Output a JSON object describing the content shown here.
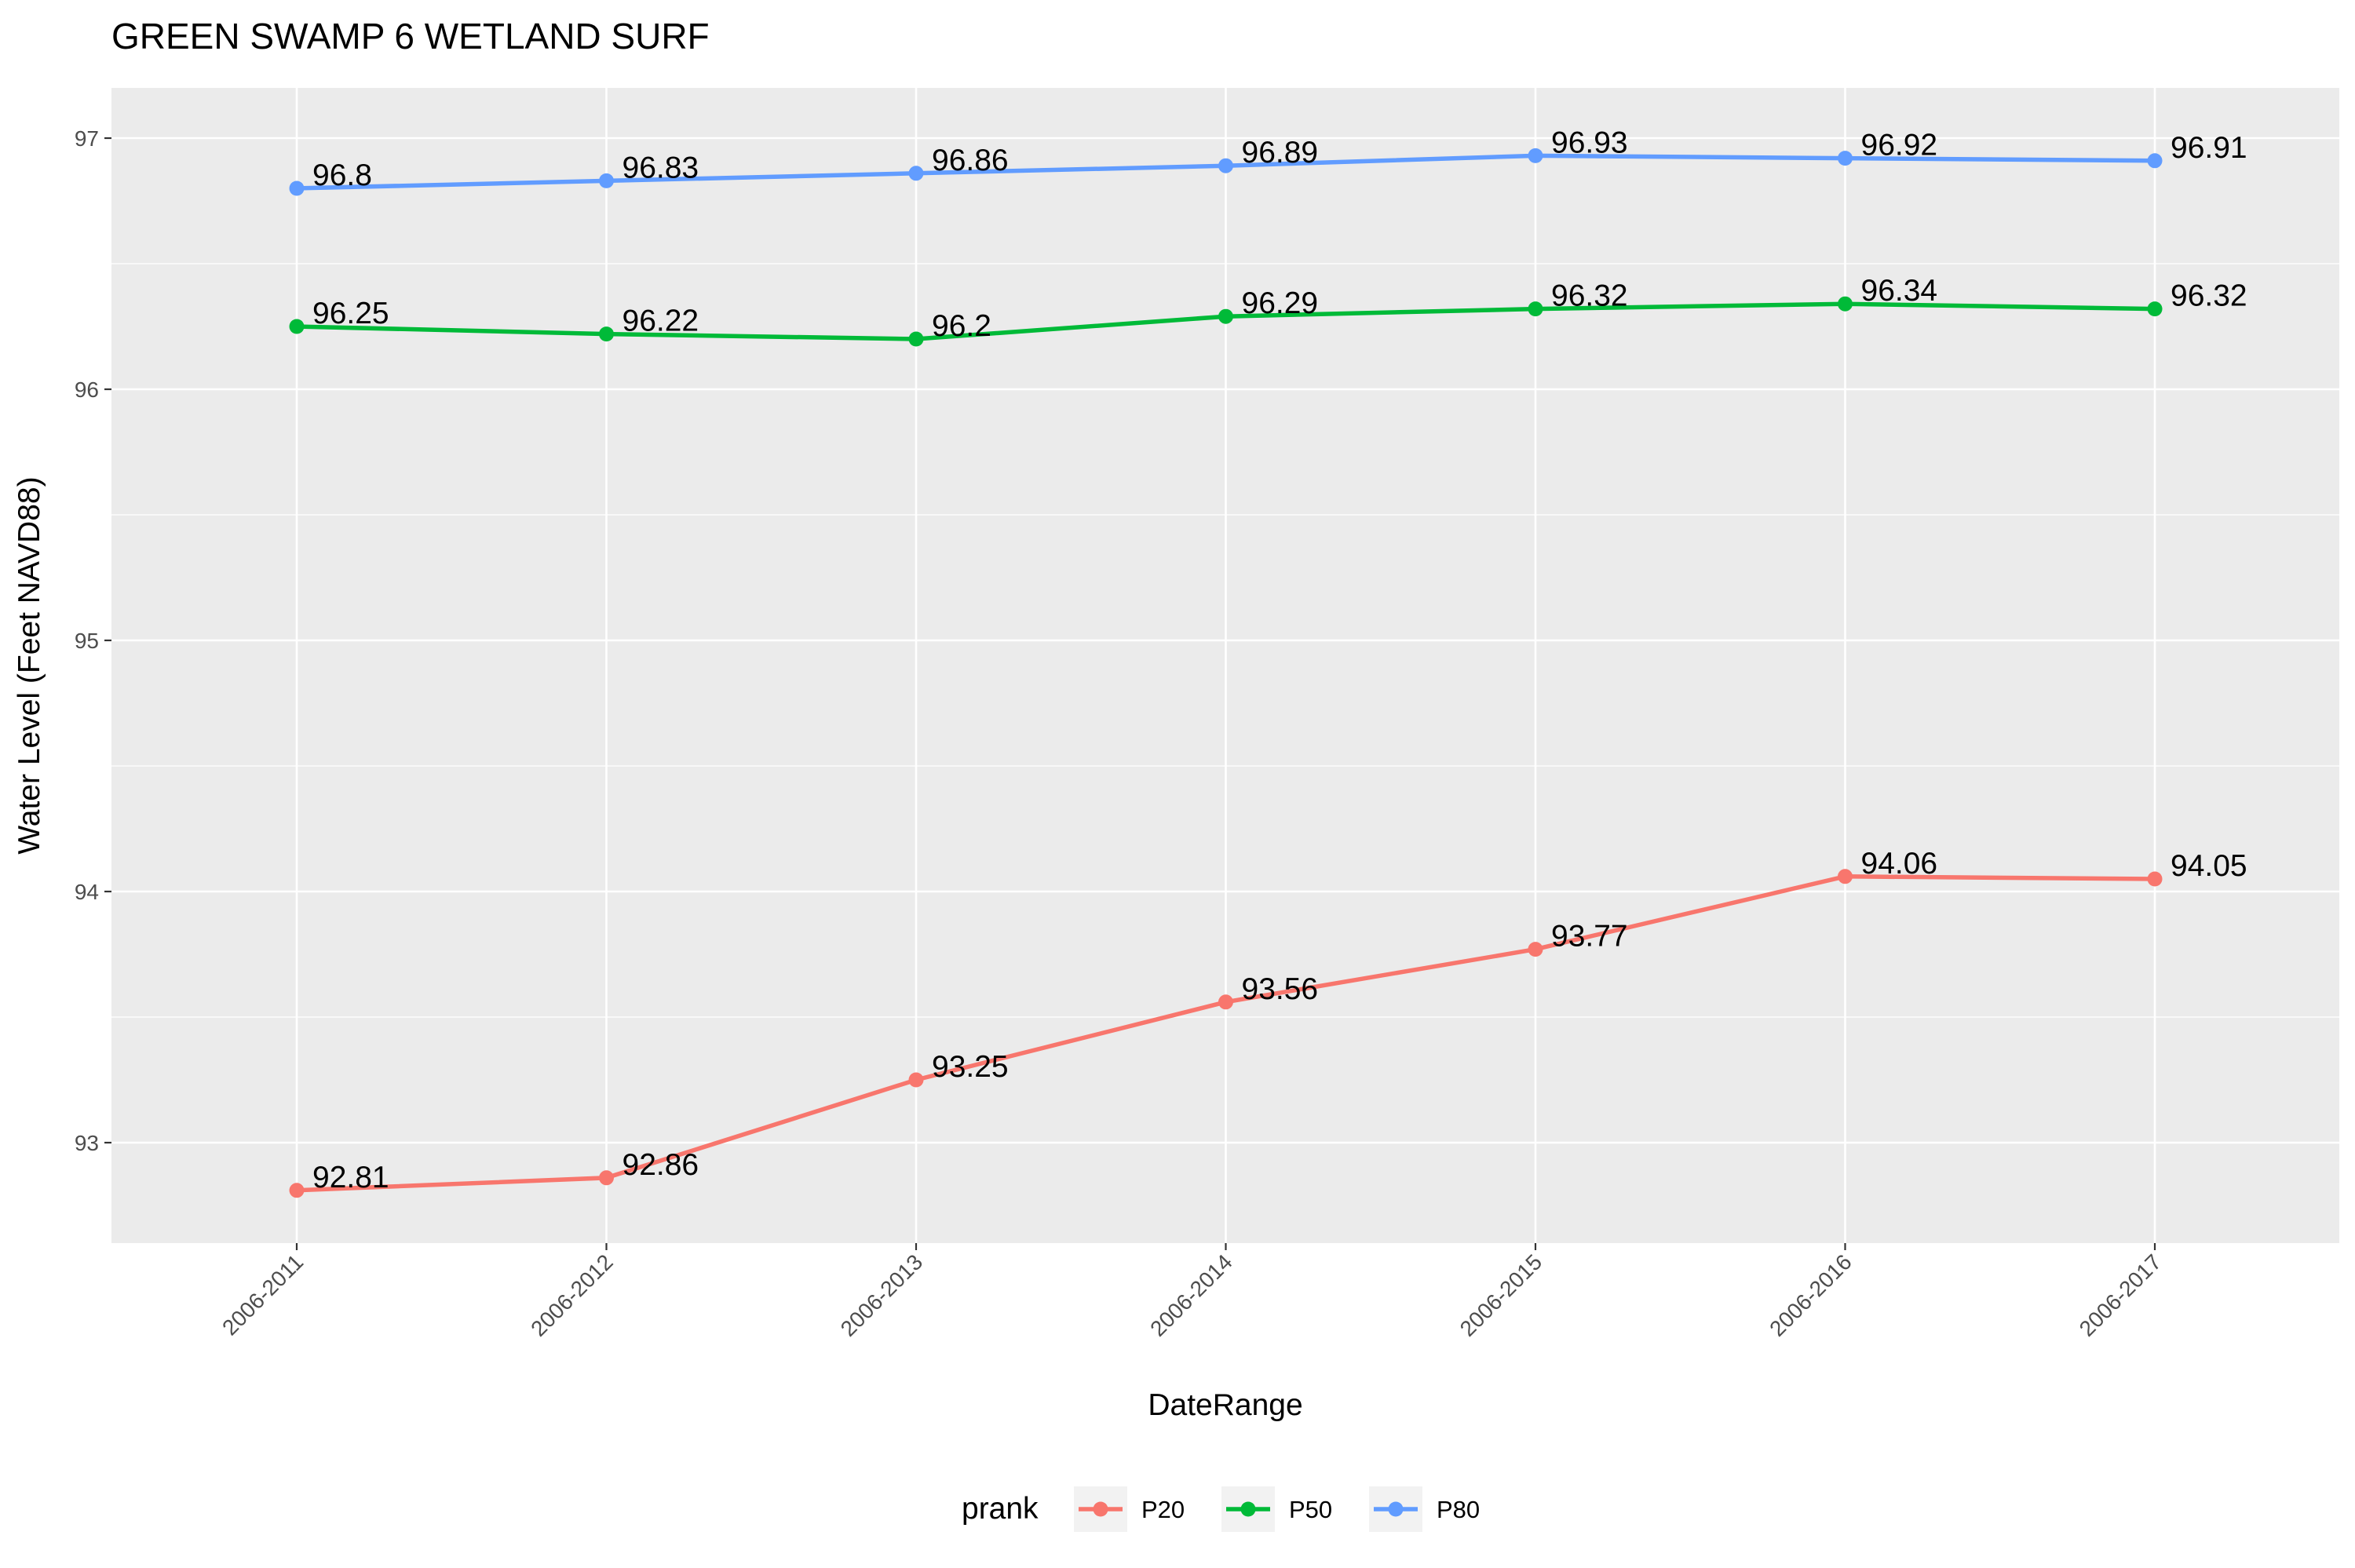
{
  "chart_data": {
    "type": "line",
    "title": "GREEN SWAMP 6 WETLAND SURF",
    "xlabel": "DateRange",
    "ylabel": "Water Level (Feet NAVD88)",
    "categories": [
      "2006-2011",
      "2006-2012",
      "2006-2013",
      "2006-2014",
      "2006-2015",
      "2006-2016",
      "2006-2017"
    ],
    "ylim": [
      92.6,
      97.2
    ],
    "yticks": [
      93,
      94,
      95,
      96,
      97
    ],
    "grid": true,
    "legend": {
      "title": "prank",
      "position": "bottom"
    },
    "series": [
      {
        "name": "P20",
        "color": "#F8766D",
        "values": [
          92.81,
          92.86,
          93.25,
          93.56,
          93.77,
          94.06,
          94.05
        ]
      },
      {
        "name": "P50",
        "color": "#00BA38",
        "values": [
          96.25,
          96.22,
          96.2,
          96.29,
          96.32,
          96.34,
          96.32
        ]
      },
      {
        "name": "P80",
        "color": "#619CFF",
        "values": [
          96.8,
          96.83,
          96.86,
          96.89,
          96.93,
          96.92,
          96.91
        ]
      }
    ]
  }
}
